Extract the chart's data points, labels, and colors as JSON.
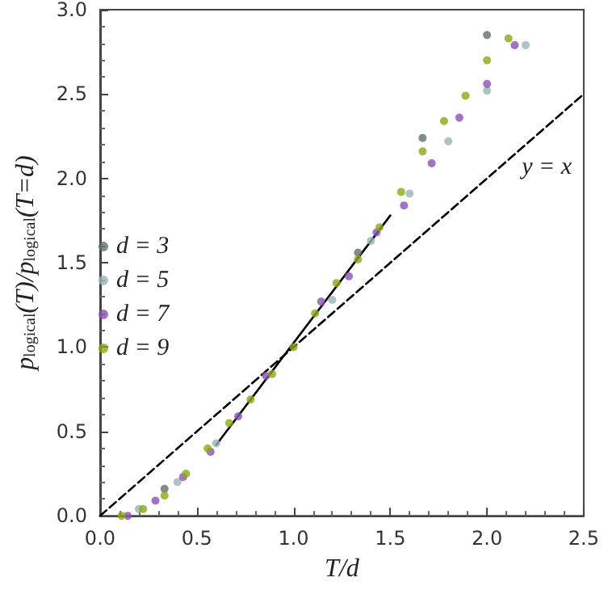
{
  "chart_data": {
    "type": "scatter",
    "xlabel": "T/d",
    "ylabel": "p$_{logical}$(T)/p$_{logical}$(T=d)",
    "xlim": [
      0,
      2.5
    ],
    "ylim": [
      0,
      3
    ],
    "xticks": [
      {
        "value": 0,
        "label": "0.0"
      },
      {
        "value": 0.5,
        "label": "0.5"
      },
      {
        "value": 1,
        "label": "1.0"
      },
      {
        "value": 1.5,
        "label": "1.5"
      },
      {
        "value": 2,
        "label": "2.0"
      },
      {
        "value": 2.5,
        "label": "2.5"
      }
    ],
    "yticks": [
      {
        "value": 0,
        "label": "0.0"
      },
      {
        "value": 0.5,
        "label": "0.5"
      },
      {
        "value": 1,
        "label": "1.0"
      },
      {
        "value": 1.5,
        "label": "1.5"
      },
      {
        "value": 2,
        "label": "2.0"
      },
      {
        "value": 2.5,
        "label": "2.5"
      },
      {
        "value": 3,
        "label": "3.0"
      }
    ],
    "marker": "circle",
    "legend": "left",
    "grid": false,
    "annotations": [
      "y = x"
    ],
    "series": [
      {
        "name": "d = 3",
        "color": "#5f7070",
        "x": [
          0.333,
          1,
          1.333,
          1.667,
          2
        ],
        "values": [
          0.16,
          null,
          1.56,
          2.24,
          2.85
        ]
      },
      {
        "name": "d = 5",
        "color": "#9ab4b4",
        "x": [
          0.2,
          0.4,
          0.6,
          1,
          1.2,
          1.4,
          1.6,
          1.8,
          2,
          2.2
        ],
        "values": [
          0.04,
          0.2,
          0.43,
          null,
          1.28,
          1.63,
          1.91,
          2.22,
          2.52,
          2.79
        ]
      },
      {
        "name": "d = 7",
        "color": "#8a52b4",
        "x": [
          0.143,
          0.286,
          0.429,
          0.571,
          0.714,
          0.857,
          1,
          1.143,
          1.286,
          1.429,
          1.571,
          1.714,
          1.857,
          2,
          2.143
        ],
        "values": [
          0,
          0.09,
          0.23,
          0.38,
          0.59,
          0.83,
          null,
          1.27,
          1.42,
          1.68,
          1.84,
          2.09,
          2.36,
          2.56,
          2.79
        ]
      },
      {
        "name": "d = 9",
        "color": "#8aaa10",
        "x": [
          0.111,
          0.222,
          0.333,
          0.444,
          0.556,
          0.667,
          0.778,
          0.889,
          1,
          1.111,
          1.222,
          1.333,
          1.444,
          1.556,
          1.667,
          1.778,
          1.889,
          2,
          2.111
        ],
        "values": [
          0,
          0.04,
          0.12,
          0.25,
          0.4,
          0.55,
          0.69,
          0.84,
          1,
          1.2,
          1.38,
          1.52,
          1.71,
          1.92,
          2.16,
          2.34,
          2.49,
          2.7,
          2.83
        ]
      },
      {
        "type": "line",
        "color": "#000000",
        "line_style": "solid",
        "marker": "none",
        "x": [
          0.6,
          1.5
        ],
        "values": [
          0.42,
          1.78
        ]
      },
      {
        "type": "line",
        "color": "#000000",
        "line_style": "dashed",
        "marker": "none",
        "x": [
          0,
          2.5
        ],
        "values": [
          0,
          2.5
        ]
      }
    ]
  }
}
